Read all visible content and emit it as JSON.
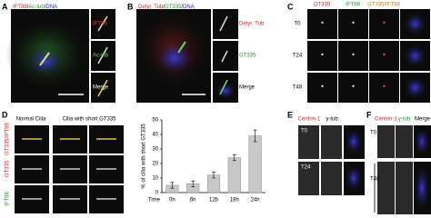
{
  "panels": {
    "A": {
      "label": "A",
      "title": [
        "IFT88",
        "/",
        "Ac-tub",
        "/",
        "DNA"
      ],
      "insets": [
        "IFT88",
        "Ac-tub",
        "Merge"
      ]
    },
    "B": {
      "label": "B",
      "title": [
        "Detyr. Tub",
        "/",
        "GT335",
        "/",
        "DNA"
      ],
      "insets": [
        "Detyr. Tub",
        "GT335",
        "Merge"
      ]
    },
    "C": {
      "label": "C",
      "columns": [
        "GT335",
        "IFT88",
        "GT335/IFT88"
      ],
      "rows": [
        "T0",
        "T24",
        "T48"
      ]
    },
    "D": {
      "label": "D",
      "columns": [
        "Normal Cilia",
        "Cilia with short GT335"
      ],
      "rows": [
        "GT335/IFT88",
        "GT335",
        "IFT88"
      ]
    },
    "E": {
      "label": "E",
      "columns": [
        "Centrin-1",
        "γ-tub"
      ],
      "rows": [
        "T0",
        "T24"
      ]
    },
    "F": {
      "label": "F",
      "columns": [
        "Centrin-1",
        "γ-tub",
        "Merge"
      ],
      "rows": [
        "T0",
        "T48"
      ]
    }
  },
  "chart_data": {
    "type": "bar",
    "y_label": "% of cilia with short GT335",
    "x_label": "Time",
    "categories": [
      "0h",
      "6h",
      "12h",
      "18h",
      "24h"
    ],
    "values": [
      5,
      6,
      12,
      24,
      39
    ],
    "errors": [
      2,
      2,
      2,
      2,
      4
    ],
    "color": "#c8c8c8",
    "ylim": [
      0,
      50
    ],
    "yticks": [
      0,
      10,
      20,
      30,
      40,
      50
    ]
  }
}
